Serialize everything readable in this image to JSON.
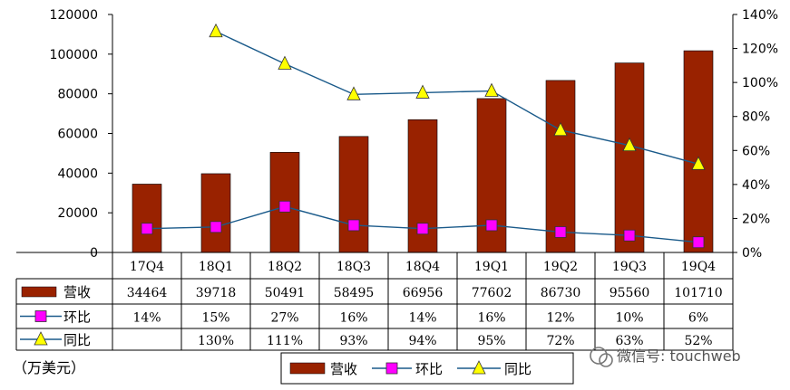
{
  "chart_data": {
    "type": "bar",
    "categories": [
      "17Q4",
      "18Q1",
      "18Q2",
      "18Q3",
      "18Q4",
      "19Q1",
      "19Q2",
      "19Q3",
      "19Q4"
    ],
    "series": [
      {
        "name": "营收",
        "kind": "bar",
        "axis": "left",
        "color": "#992200",
        "values": [
          34464,
          39718,
          50491,
          58495,
          66956,
          77602,
          86730,
          95560,
          101710
        ]
      },
      {
        "name": "环比",
        "kind": "line",
        "axis": "right",
        "color": "#1a5a8a",
        "marker_color": "#ff00ff",
        "values": [
          14,
          15,
          27,
          16,
          14,
          16,
          12,
          10,
          6
        ]
      },
      {
        "name": "同比",
        "kind": "line",
        "axis": "right",
        "color": "#1a5a8a",
        "marker_color": "#ffff00",
        "values": [
          null,
          130,
          111,
          93,
          94,
          95,
          72,
          63,
          52
        ]
      }
    ],
    "ylim_left": [
      0,
      120000
    ],
    "yticks_left": [
      "0",
      "20000",
      "40000",
      "60000",
      "80000",
      "100000",
      "120000"
    ],
    "ylim_right": [
      0,
      140
    ],
    "yticks_right": [
      "0%",
      "20%",
      "40%",
      "60%",
      "80%",
      "100%",
      "120%",
      "140%"
    ],
    "table_rows": [
      {
        "label": "营收",
        "cells": [
          "34464",
          "39718",
          "50491",
          "58495",
          "66956",
          "77602",
          "86730",
          "95560",
          "101710"
        ]
      },
      {
        "label": "环比",
        "cells": [
          "14%",
          "15%",
          "27%",
          "16%",
          "14%",
          "16%",
          "12%",
          "10%",
          "6%"
        ]
      },
      {
        "label": "同比",
        "cells": [
          "",
          "130%",
          "111%",
          "93%",
          "94%",
          "95%",
          "72%",
          "63%",
          "52%"
        ]
      }
    ],
    "unit_label": "（万美元）",
    "legend": [
      "营收",
      "环比",
      "同比"
    ],
    "legend_position": "bottom",
    "grid": false
  },
  "watermark": "微信号: touchweb"
}
